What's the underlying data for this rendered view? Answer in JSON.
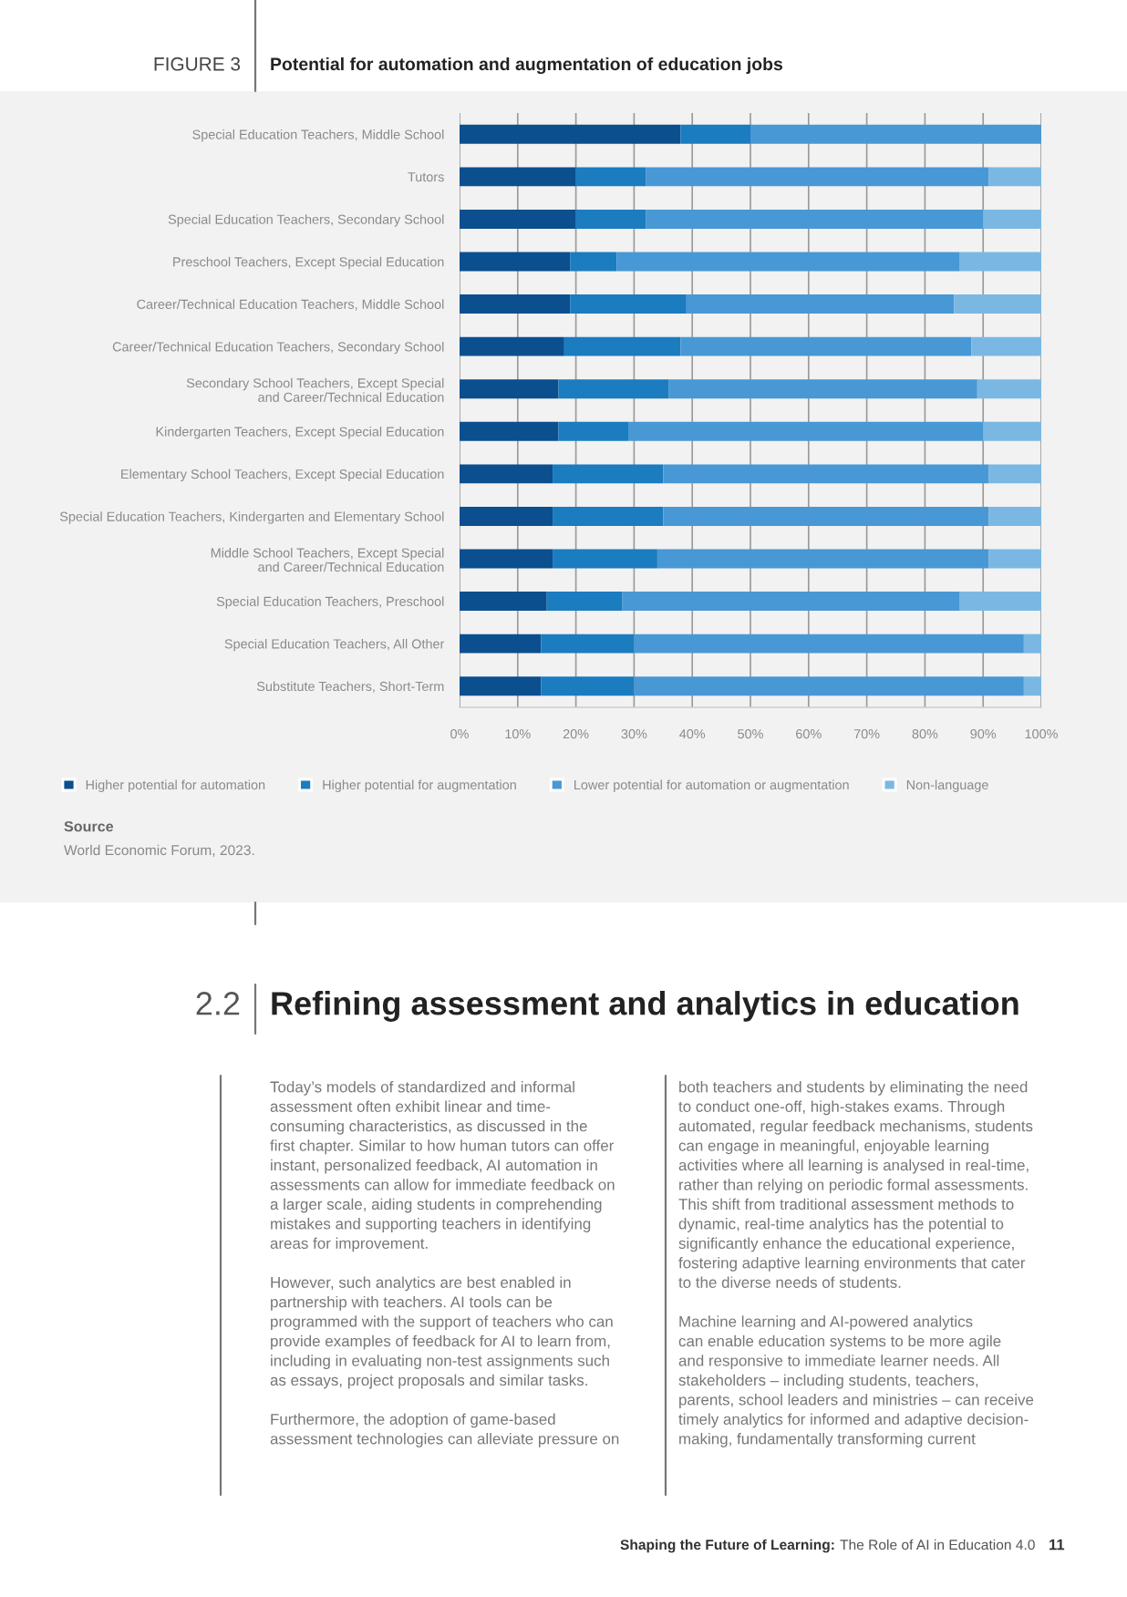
{
  "chart_data": {
    "type": "bar",
    "orientation": "horizontal",
    "stacked": true,
    "title": "Potential for automation and augmentation of education jobs",
    "categories": [
      "Special Education Teachers, Middle School",
      "Tutors",
      "Special Education Teachers, Secondary School",
      "Preschool Teachers, Except Special Education",
      "Career/Technical Education Teachers, Middle School",
      "Career/Technical Education Teachers, Secondary School",
      "Secondary School Teachers, Except Special\nand Career/Technical Education",
      "Kindergarten Teachers, Except Special Education",
      "Elementary School Teachers, Except Special Education",
      "Special Education Teachers, Kindergarten and Elementary School",
      "Middle School Teachers, Except Special\nand Career/Technical Education",
      "Special Education Teachers, Preschool",
      "Special Education Teachers, All Other",
      "Substitute Teachers, Short-Term"
    ],
    "series": [
      {
        "name": "Higher potential for automation",
        "color": "#0b4f8f",
        "values": [
          38,
          20,
          20,
          19,
          19,
          18,
          17,
          17,
          16,
          16,
          16,
          15,
          14,
          14
        ]
      },
      {
        "name": "Higher potential for augmentation",
        "color": "#1b7cc0",
        "values": [
          12,
          12,
          12,
          8,
          20,
          20,
          19,
          12,
          19,
          19,
          18,
          13,
          16,
          16
        ]
      },
      {
        "name": "Lower potential for automation or augmentation",
        "color": "#4898d6",
        "values": [
          50,
          59,
          58,
          59,
          46,
          50,
          53,
          61,
          56,
          56,
          57,
          58,
          67,
          67
        ]
      },
      {
        "name": "Non-language",
        "color": "#7ab8e3",
        "values": [
          0,
          9,
          10,
          14,
          15,
          12,
          11,
          10,
          9,
          9,
          9,
          14,
          3,
          3
        ]
      }
    ],
    "xlim": [
      0,
      100
    ],
    "xticks": [
      {
        "value": 0,
        "label": "0%"
      },
      {
        "value": 10,
        "label": "10%"
      },
      {
        "value": 20,
        "label": "20%"
      },
      {
        "value": 30,
        "label": "30%"
      },
      {
        "value": 40,
        "label": "40%"
      },
      {
        "value": 50,
        "label": "50%"
      },
      {
        "value": 60,
        "label": "60%"
      },
      {
        "value": 70,
        "label": "70%"
      },
      {
        "value": 80,
        "label": "80%"
      },
      {
        "value": 90,
        "label": "90%"
      },
      {
        "value": 100,
        "label": "100%"
      }
    ],
    "grid": "x",
    "legend": "bottom",
    "annotations": [
      "FIGURE 3",
      "Source",
      "World Economic Forum, 2023.",
      "2.2",
      "Refining assessment and analytics in education",
      "Today’s models of standardized and informal\nassessment often exhibit linear and time-\nconsuming characteristics, as discussed in the\nfirst chapter. Similar to how human tutors can offer\ninstant, personalized feedback, AI automation in\nassessments can allow for immediate feedback on\na larger scale, aiding students in comprehending\nmistakes and supporting teachers in identifying\nareas for improvement.\n\nHowever, such analytics are best enabled in\npartnership with teachers. AI tools can be\nprogrammed with the support of teachers who can\nprovide examples of feedback for AI to learn from,\nincluding in evaluating non-test assignments such\nas essays, project proposals and similar tasks.\n\nFurthermore, the adoption of game-based\nassessment technologies can alleviate pressure on",
      "both teachers and students by eliminating the need\nto conduct one-off, high-stakes exams. Through\nautomated, regular feedback mechanisms, students\ncan engage in meaningful, enjoyable learning\nactivities where all learning is analysed in real-time,\nrather than relying on periodic formal assessments.\nThis shift from traditional assessment methods to\ndynamic, real-time analytics has the potential to\nsignificantly enhance the educational experience,\nfostering adaptive learning environments that cater\nto the diverse needs of students.\n\nMachine learning and AI-powered analytics\ncan enable education systems to be more agile\nand responsive to immediate learner needs. All\nstakeholders – including students, teachers,\nparents, school leaders and ministries – can receive\ntimely analytics for informed and adaptive decision-\nmaking, fundamentally transforming current",
      "Shaping the Future of Learning:",
      "The Role of AI in Education 4.0",
      "11"
    ]
  }
}
